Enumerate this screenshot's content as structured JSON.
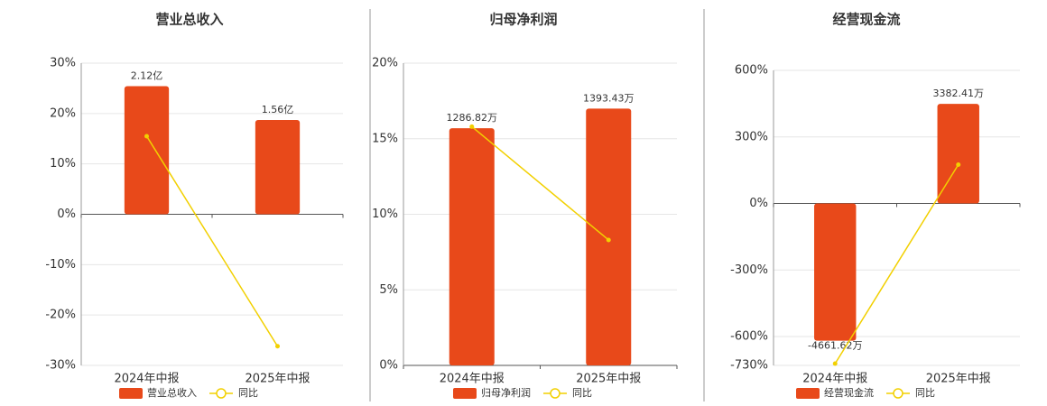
{
  "chart_data": [
    {
      "type": "bar",
      "title": "营业总收入",
      "categories": [
        "2024年中报",
        "2025年中报"
      ],
      "series": [
        {
          "name": "营业总收入",
          "color": "#e8491a",
          "axis": "y2",
          "values": [
            2.12,
            1.56
          ],
          "value_labels": [
            "2.12亿",
            "1.56亿"
          ]
        },
        {
          "name": "同比",
          "color": "#f2d000",
          "type": "line",
          "values": [
            15.5,
            -26.2
          ]
        }
      ],
      "ylim": [
        -30,
        30
      ],
      "yticks": [
        {
          "value": 30,
          "label": "30%"
        },
        {
          "value": 20,
          "label": "20%"
        },
        {
          "value": 10,
          "label": "10%"
        },
        {
          "value": 0,
          "label": "0%"
        },
        {
          "value": -10,
          "label": "-10%"
        },
        {
          "value": -20,
          "label": "-20%"
        },
        {
          "value": -30,
          "label": "-30%"
        }
      ],
      "y2lim": [
        -2.5,
        2.5
      ],
      "grid": true
    },
    {
      "type": "bar",
      "title": "归母净利润",
      "categories": [
        "2024年中报",
        "2025年中报"
      ],
      "series": [
        {
          "name": "归母净利润",
          "color": "#e8491a",
          "axis": "y2",
          "values": [
            1286.82,
            1393.43
          ],
          "value_labels": [
            "1286.82万",
            "1393.43万"
          ]
        },
        {
          "name": "同比",
          "color": "#f2d000",
          "type": "line",
          "values": [
            15.8,
            8.3
          ]
        }
      ],
      "ylim": [
        0,
        20
      ],
      "yticks": [
        {
          "value": 20,
          "label": "20%"
        },
        {
          "value": 15,
          "label": "15%"
        },
        {
          "value": 10,
          "label": "10%"
        },
        {
          "value": 5,
          "label": "5%"
        },
        {
          "value": 0,
          "label": "0%"
        }
      ],
      "y2lim": [
        0,
        1640
      ],
      "grid": true
    },
    {
      "type": "bar",
      "title": "经营现金流",
      "categories": [
        "2024年中报",
        "2025年中报"
      ],
      "series": [
        {
          "name": "经营现金流",
          "color": "#e8491a",
          "axis": "y2",
          "values": [
            -4661.62,
            3382.41
          ],
          "value_labels": [
            "-4661.62万",
            "3382.41万"
          ]
        },
        {
          "name": "同比",
          "color": "#f2d000",
          "type": "line",
          "values": [
            -722,
            175
          ]
        }
      ],
      "ylim": [
        -730,
        600
      ],
      "yticks": [
        {
          "value": 600,
          "label": "600%"
        },
        {
          "value": 300,
          "label": "300%"
        },
        {
          "value": 0,
          "label": "0%"
        },
        {
          "value": -300,
          "label": "-300%"
        },
        {
          "value": -600,
          "label": "-600%"
        },
        {
          "value": -730,
          "label": "-730%"
        }
      ],
      "y2lim": [
        -5500,
        4520
      ],
      "grid": true
    }
  ]
}
